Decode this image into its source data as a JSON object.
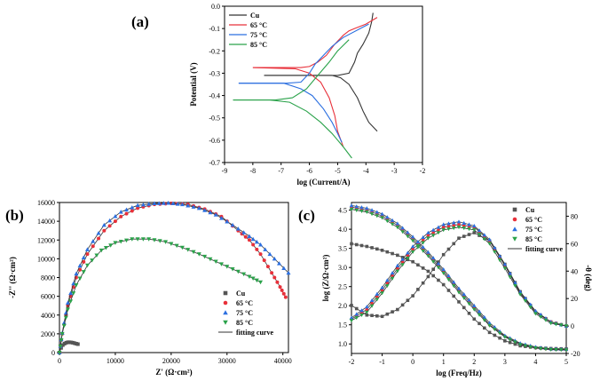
{
  "chart_data": [
    {
      "panel": "(a)",
      "type": "line",
      "xlabel": "log (Current/A)",
      "ylabel": "Potential (V)",
      "xlim": [
        -9,
        -2
      ],
      "ylim": [
        -0.7,
        0.0
      ],
      "xticks": [
        -9,
        -8,
        -7,
        -6,
        -5,
        -4,
        -3,
        -2
      ],
      "yticks": [
        0.0,
        -0.1,
        -0.2,
        -0.3,
        -0.4,
        -0.5,
        -0.6,
        -0.7
      ],
      "series": [
        {
          "name": "Cu",
          "color": "#333333",
          "x": [
            -7.6,
            -6.0,
            -5.0,
            -4.6,
            -4.4,
            -4.3,
            -4.1,
            -3.9,
            -3.8,
            -3.75
          ],
          "y": [
            -0.31,
            -0.31,
            -0.31,
            -0.3,
            -0.25,
            -0.21,
            -0.17,
            -0.12,
            -0.07,
            -0.03
          ],
          "x2": [
            -7.6,
            -5.2,
            -4.9,
            -4.6,
            -4.3,
            -4.1,
            -3.9,
            -3.6
          ],
          "y2": [
            -0.31,
            -0.31,
            -0.32,
            -0.35,
            -0.41,
            -0.47,
            -0.52,
            -0.56
          ]
        },
        {
          "name": "65 °C",
          "color": "#e8303a",
          "x": [
            -8.0,
            -6.3,
            -6.0,
            -5.7,
            -5.4,
            -5.1,
            -4.8,
            -4.6,
            -4.4,
            -4.0,
            -3.6
          ],
          "y": [
            -0.275,
            -0.275,
            -0.27,
            -0.25,
            -0.22,
            -0.17,
            -0.13,
            -0.11,
            -0.1,
            -0.08,
            -0.05
          ],
          "x2": [
            -8.0,
            -6.5,
            -6.0,
            -5.6,
            -5.3,
            -5.1,
            -5.0,
            -4.8
          ],
          "y2": [
            -0.275,
            -0.28,
            -0.3,
            -0.34,
            -0.41,
            -0.49,
            -0.56,
            -0.63
          ]
        },
        {
          "name": "75 °C",
          "color": "#2b6fe0",
          "x": [
            -8.5,
            -6.8,
            -6.3,
            -6.0,
            -5.8,
            -5.5,
            -5.2,
            -5.0,
            -4.8,
            -4.2,
            -3.9
          ],
          "y": [
            -0.345,
            -0.345,
            -0.34,
            -0.3,
            -0.26,
            -0.22,
            -0.18,
            -0.16,
            -0.14,
            -0.1,
            -0.08
          ],
          "x2": [
            -8.5,
            -6.9,
            -6.3,
            -5.9,
            -5.5,
            -5.2,
            -5.0,
            -4.85
          ],
          "y2": [
            -0.345,
            -0.345,
            -0.37,
            -0.4,
            -0.46,
            -0.52,
            -0.57,
            -0.61
          ]
        },
        {
          "name": "85 °C",
          "color": "#2aa24a",
          "x": [
            -8.7,
            -7.2,
            -6.6,
            -6.1,
            -5.7,
            -5.3,
            -5.0,
            -4.6
          ],
          "y": [
            -0.42,
            -0.42,
            -0.41,
            -0.37,
            -0.31,
            -0.25,
            -0.2,
            -0.15
          ],
          "x2": [
            -8.7,
            -7.4,
            -6.7,
            -6.1,
            -5.6,
            -5.2,
            -4.8,
            -4.5
          ],
          "y2": [
            -0.42,
            -0.42,
            -0.43,
            -0.47,
            -0.52,
            -0.57,
            -0.63,
            -0.68
          ]
        }
      ],
      "legend": [
        "Cu",
        "65 °C",
        "75 °C",
        "85 °C"
      ]
    },
    {
      "panel": "(b)",
      "type": "scatter",
      "xlabel": "Z' (Ω·cm²)",
      "ylabel": "-Z'' (Ω·cm²)",
      "xlim": [
        0,
        41000
      ],
      "ylim": [
        0,
        16000
      ],
      "xticks": [
        0,
        10000,
        20000,
        30000,
        40000
      ],
      "yticks": [
        0,
        2000,
        4000,
        6000,
        8000,
        10000,
        12000,
        14000,
        16000
      ],
      "series": [
        {
          "name": "Cu",
          "color": "#555555",
          "marker": "square",
          "x": [
            0,
            300,
            600,
            900,
            1200,
            1500,
            1800,
            2100,
            2400,
            2700,
            3000,
            3300
          ],
          "y": [
            0,
            500,
            800,
            950,
            1050,
            1100,
            1100,
            1080,
            1050,
            1000,
            950,
            900
          ]
        },
        {
          "name": "65 °C",
          "color": "#e8303a",
          "marker": "circle",
          "x": [
            0,
            500,
            1500,
            3000,
            5000,
            8000,
            11000,
            14000,
            17000,
            20000,
            23000,
            26000,
            29000,
            32000,
            34000,
            36000,
            38000,
            39500,
            40500
          ],
          "y": [
            0,
            2000,
            5000,
            8000,
            10500,
            13000,
            14500,
            15400,
            15800,
            15900,
            15800,
            15300,
            14500,
            13000,
            12000,
            10500,
            8500,
            7000,
            5900
          ]
        },
        {
          "name": "75 °C",
          "color": "#2b6fe0",
          "marker": "triangle",
          "x": [
            0,
            500,
            1500,
            3000,
            5000,
            8000,
            11000,
            14000,
            17000,
            19500,
            22000,
            25000,
            28000,
            31000,
            34000,
            36000,
            38500,
            41000
          ],
          "y": [
            0,
            2100,
            5300,
            8400,
            11000,
            13600,
            15000,
            15700,
            15900,
            15950,
            15800,
            15400,
            14700,
            13600,
            12400,
            11500,
            10000,
            8500
          ]
        },
        {
          "name": "85 °C",
          "color": "#2aa24a",
          "marker": "triangle-down",
          "x": [
            0,
            500,
            1500,
            3000,
            5000,
            7500,
            10000,
            13000,
            16000,
            19000,
            22000,
            25000,
            28000,
            31000,
            34000,
            36000
          ],
          "y": [
            0,
            2000,
            4600,
            7200,
            9300,
            10900,
            11700,
            12100,
            12100,
            11800,
            11200,
            10500,
            9700,
            8900,
            8100,
            7500
          ]
        },
        {
          "name": "fitting curve",
          "color": "#333333",
          "marker": "line"
        }
      ],
      "legend": [
        "Cu",
        "65 °C",
        "75 °C",
        "85 °C",
        "fitting curve"
      ]
    },
    {
      "panel": "(c)",
      "type": "scatter",
      "xlabel": "log (Freq/Hz)",
      "ylabel": "log (Z/Ω·cm²)",
      "y2label": "-θ (deg)",
      "xlim": [
        -2,
        5
      ],
      "ylim": [
        0.75,
        4.7
      ],
      "y2lim": [
        -20,
        90
      ],
      "xticks": [
        -2,
        -1,
        0,
        1,
        2,
        3,
        4,
        5
      ],
      "yticks": [
        1.0,
        1.5,
        2.0,
        2.5,
        3.0,
        3.5,
        4.0,
        4.5
      ],
      "y2ticks": [
        -20,
        0,
        20,
        40,
        60,
        80
      ],
      "series": [
        {
          "name": "Cu",
          "color": "#555555",
          "marker": "square",
          "x": [
            -2,
            -1.5,
            -1,
            -0.5,
            0,
            0.5,
            1,
            1.5,
            2,
            2.5,
            3,
            3.5,
            4,
            4.5,
            5
          ],
          "modulus": [
            3.62,
            3.55,
            3.45,
            3.32,
            3.15,
            2.9,
            2.55,
            2.1,
            1.65,
            1.3,
            1.08,
            0.95,
            0.9,
            0.88,
            0.87
          ],
          "phase": [
            15,
            8,
            7,
            12,
            22,
            36,
            52,
            64,
            68,
            62,
            45,
            25,
            10,
            3,
            0
          ]
        },
        {
          "name": "65 °C",
          "color": "#e8303a",
          "marker": "circle",
          "x": [
            -2,
            -1.5,
            -1,
            -0.5,
            0,
            0.5,
            1,
            1.5,
            2,
            2.5,
            3,
            3.5,
            4,
            4.5,
            5
          ],
          "modulus": [
            4.58,
            4.5,
            4.35,
            4.1,
            3.75,
            3.35,
            2.9,
            2.4,
            1.95,
            1.5,
            1.2,
            1.0,
            0.9,
            0.86,
            0.85
          ],
          "phase": [
            5,
            12,
            26,
            42,
            56,
            66,
            72,
            74,
            72,
            62,
            44,
            24,
            10,
            3,
            0
          ]
        },
        {
          "name": "75 °C",
          "color": "#2b6fe0",
          "marker": "triangle",
          "x": [
            -2,
            -1.5,
            -1,
            -0.5,
            0,
            0.5,
            1,
            1.5,
            2,
            2.5,
            3,
            3.5,
            4,
            4.5,
            5
          ],
          "modulus": [
            4.62,
            4.55,
            4.4,
            4.15,
            3.8,
            3.4,
            2.95,
            2.45,
            2.0,
            1.55,
            1.22,
            1.02,
            0.92,
            0.87,
            0.86
          ],
          "phase": [
            6,
            14,
            28,
            44,
            58,
            68,
            74,
            76,
            73,
            63,
            45,
            25,
            11,
            3,
            0
          ]
        },
        {
          "name": "85 °C",
          "color": "#2aa24a",
          "marker": "triangle-down",
          "x": [
            -2,
            -1.5,
            -1,
            -0.5,
            0,
            0.5,
            1,
            1.5,
            2,
            2.5,
            3,
            3.5,
            4,
            4.5,
            5
          ],
          "modulus": [
            4.52,
            4.45,
            4.3,
            4.05,
            3.7,
            3.3,
            2.85,
            2.35,
            1.9,
            1.48,
            1.18,
            0.98,
            0.89,
            0.85,
            0.84
          ],
          "phase": [
            4,
            10,
            24,
            40,
            54,
            64,
            70,
            72,
            70,
            60,
            42,
            23,
            9,
            2,
            0
          ]
        },
        {
          "name": "fitting curve",
          "color": "#333333",
          "marker": "line"
        }
      ],
      "legend": [
        "Cu",
        "65 °C",
        "75 °C",
        "85 °C",
        "fitting curve"
      ]
    }
  ],
  "panel_labels": {
    "a": "(a)",
    "b": "(b)",
    "c": "(c)"
  }
}
